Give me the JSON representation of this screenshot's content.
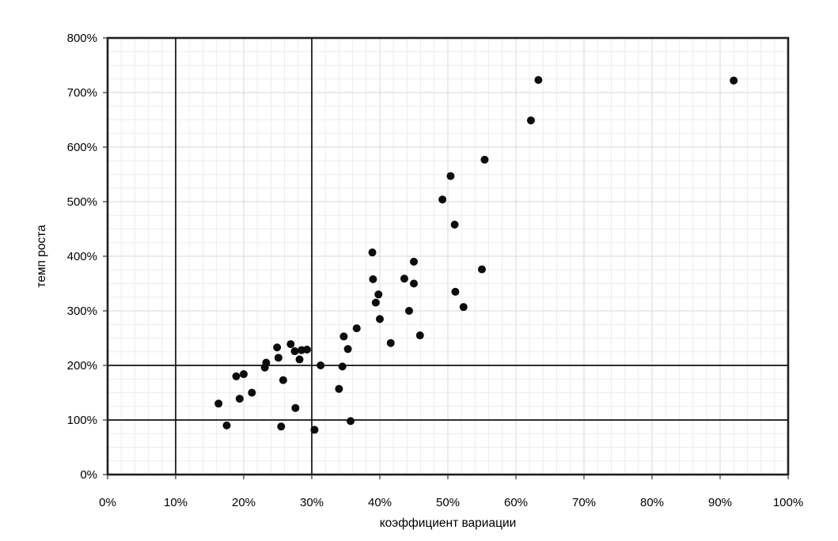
{
  "chart_data": {
    "type": "scatter",
    "title": "",
    "xlabel": "коэффициент вариации",
    "ylabel": "темп роста",
    "xlim": [
      0,
      100
    ],
    "ylim": [
      0,
      800
    ],
    "x_major_step": 10,
    "y_major_step": 100,
    "x_minor_step": 2,
    "y_minor_step": 25,
    "grid": "minor+major",
    "legend_position": "none",
    "x_tick_labels": [
      "0%",
      "10%",
      "20%",
      "30%",
      "40%",
      "50%",
      "60%",
      "70%",
      "80%",
      "90%",
      "100%"
    ],
    "y_tick_labels": [
      "0%",
      "100%",
      "200%",
      "300%",
      "400%",
      "500%",
      "600%",
      "700%",
      "800%"
    ],
    "reference_lines": {
      "vertical_x": [
        10,
        30
      ],
      "horizontal_y": [
        100,
        200
      ]
    },
    "points": [
      [
        16.3,
        130
      ],
      [
        17.5,
        90
      ],
      [
        18.9,
        180
      ],
      [
        19.4,
        139
      ],
      [
        20.0,
        184
      ],
      [
        21.2,
        150
      ],
      [
        23.1,
        196
      ],
      [
        23.3,
        205
      ],
      [
        24.9,
        233
      ],
      [
        25.1,
        214
      ],
      [
        25.5,
        88
      ],
      [
        25.8,
        173
      ],
      [
        26.9,
        239
      ],
      [
        27.5,
        226
      ],
      [
        27.6,
        122
      ],
      [
        28.2,
        211
      ],
      [
        28.5,
        228
      ],
      [
        29.3,
        229
      ],
      [
        30.4,
        82
      ],
      [
        31.3,
        200
      ],
      [
        34.0,
        157
      ],
      [
        34.5,
        198
      ],
      [
        34.7,
        253
      ],
      [
        35.3,
        230
      ],
      [
        35.7,
        98
      ],
      [
        36.6,
        268
      ],
      [
        38.9,
        407
      ],
      [
        39.0,
        358
      ],
      [
        39.4,
        315
      ],
      [
        39.8,
        330
      ],
      [
        40.0,
        285
      ],
      [
        41.6,
        241
      ],
      [
        43.6,
        359
      ],
      [
        44.3,
        300
      ],
      [
        45.0,
        390
      ],
      [
        45.0,
        350
      ],
      [
        45.9,
        255
      ],
      [
        49.2,
        504
      ],
      [
        50.4,
        547
      ],
      [
        51.0,
        458
      ],
      [
        51.1,
        335
      ],
      [
        52.3,
        307
      ],
      [
        55.0,
        376
      ],
      [
        55.4,
        577
      ],
      [
        62.2,
        649
      ],
      [
        63.3,
        723
      ],
      [
        92.0,
        722
      ]
    ]
  },
  "colors": {
    "background": "#ffffff",
    "point": "#0c0c0c",
    "plot_border": "#1f1f1f",
    "reference_line": "#111111",
    "grid_major": "#d7d7d7",
    "grid_minor": "#ededed",
    "tick_mark": "#333333",
    "text": "#000000"
  }
}
